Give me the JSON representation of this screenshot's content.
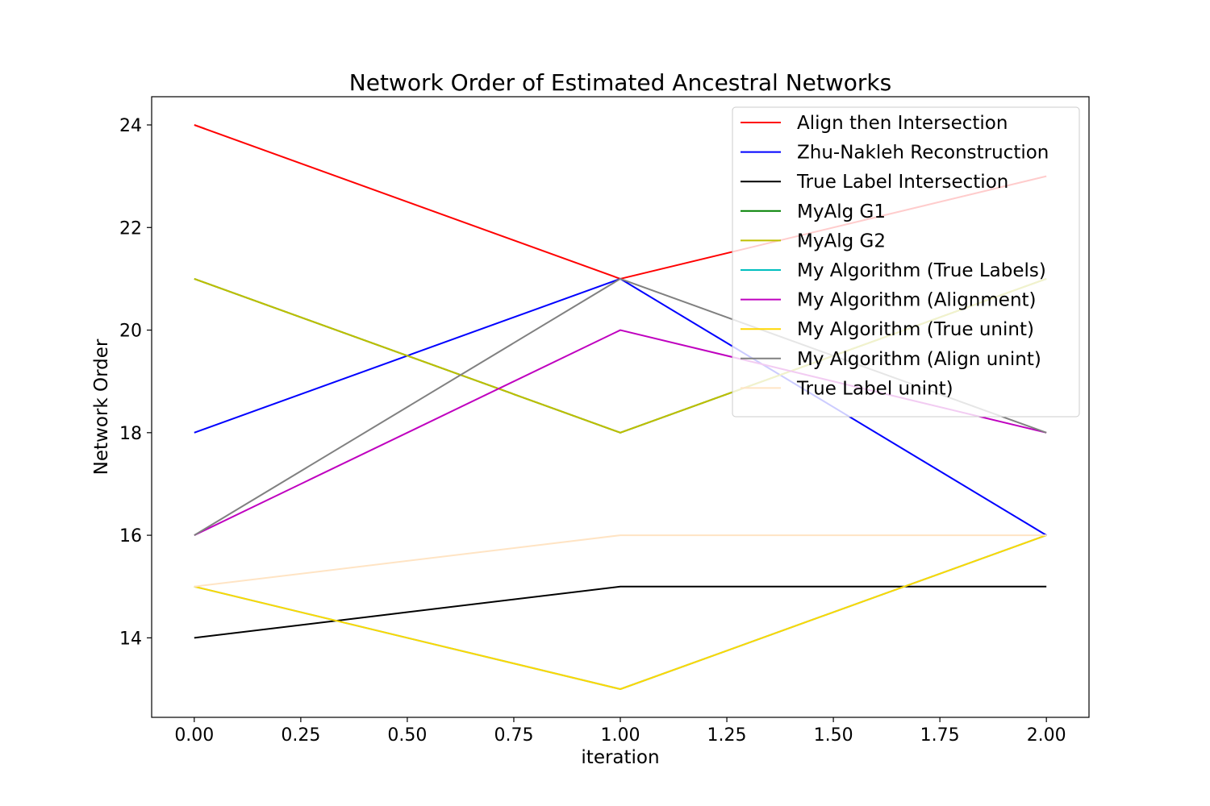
{
  "chart_data": {
    "type": "line",
    "title": "Network Order of Estimated Ancestral Networks",
    "xlabel": "iteration",
    "ylabel": "Network Order",
    "xlim": [
      -0.1,
      2.1
    ],
    "ylim": [
      12.45,
      24.55
    ],
    "xticks": [
      0.0,
      0.25,
      0.5,
      0.75,
      1.0,
      1.25,
      1.5,
      1.75,
      2.0
    ],
    "xtick_labels": [
      "0.00",
      "0.25",
      "0.50",
      "0.75",
      "1.00",
      "1.25",
      "1.50",
      "1.75",
      "2.00"
    ],
    "yticks": [
      14,
      16,
      18,
      20,
      22,
      24
    ],
    "ytick_labels": [
      "14",
      "16",
      "18",
      "20",
      "22",
      "24"
    ],
    "grid": false,
    "legend_position": "top-right",
    "x": [
      0,
      1,
      2
    ],
    "series": [
      {
        "name": "Align then Intersection",
        "color": "#ff0000",
        "values": [
          24,
          21,
          23
        ]
      },
      {
        "name": "Zhu-Nakleh Reconstruction",
        "color": "#0000ff",
        "values": [
          18,
          21,
          16
        ]
      },
      {
        "name": "True Label Intersection",
        "color": "#000000",
        "values": [
          14,
          15,
          15
        ]
      },
      {
        "name": "MyAlg G1",
        "color": "#008000",
        "values": [
          21,
          18,
          21
        ]
      },
      {
        "name": "MyAlg G2",
        "color": "#bfbf00",
        "values": [
          21,
          18,
          21
        ]
      },
      {
        "name": "My Algorithm (True Labels)",
        "color": "#00bfbf",
        "values": [
          15,
          13,
          16
        ]
      },
      {
        "name": "My Algorithm (Alignment)",
        "color": "#bf00bf",
        "values": [
          16,
          20,
          18
        ]
      },
      {
        "name": "My Algorithm (True unint)",
        "color": "#ffd700",
        "values": [
          15,
          13,
          16
        ]
      },
      {
        "name": "My Algorithm (Align unint)",
        "color": "#808080",
        "values": [
          16,
          21,
          18
        ]
      },
      {
        "name": "True Label unint)",
        "color": "#ffe4c4",
        "values": [
          15,
          16,
          16
        ]
      }
    ]
  }
}
